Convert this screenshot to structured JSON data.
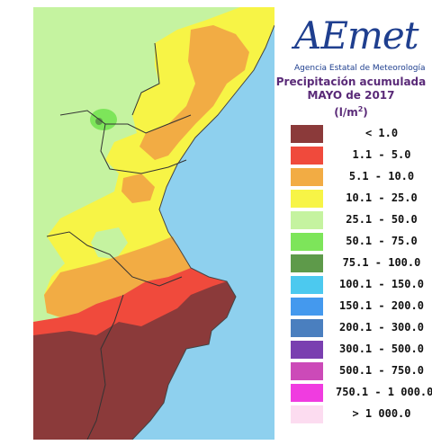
{
  "logo": {
    "text": "AEmet",
    "subtitle": "Agencia Estatal de Meteorología"
  },
  "title": {
    "line1": "Precipitación acumulada",
    "line2": "MAYO de 2017",
    "unit_base": "(l/m",
    "unit_sup": "2",
    "unit_close": ")"
  },
  "legend": [
    {
      "label": "< 1.0",
      "color": "#8b3a3a"
    },
    {
      "label": "1.1 - 5.0",
      "color": "#f04a3c"
    },
    {
      "label": "5.1 - 10.0",
      "color": "#f2ac44"
    },
    {
      "label": "10.1 - 25.0",
      "color": "#f7f446"
    },
    {
      "label": "25.1 - 50.0",
      "color": "#c5f3a0"
    },
    {
      "label": "50.1 - 75.0",
      "color": "#7de55a"
    },
    {
      "label": "75.1 - 100.0",
      "color": "#5e9a4a"
    },
    {
      "label": "100.1 - 150.0",
      "color": "#4cc9ef"
    },
    {
      "label": "150.1 - 200.0",
      "color": "#4499ee"
    },
    {
      "label": "200.1 - 300.0",
      "color": "#4a7fbf"
    },
    {
      "label": "300.1 - 500.0",
      "color": "#7a3fb0"
    },
    {
      "label": "500.1 - 750.0",
      "color": "#cc4ab8"
    },
    {
      "label": "750.1 - 1 000.0",
      "color": "#f03ce0"
    },
    {
      "label": "> 1 000.0",
      "color": "#fcdcf0"
    }
  ],
  "colors": {
    "sea": "#8ed0ee",
    "land_outside": "#d6d6d6",
    "logo_blue": "#1f3f8f",
    "title_purple": "#5a2a78"
  }
}
